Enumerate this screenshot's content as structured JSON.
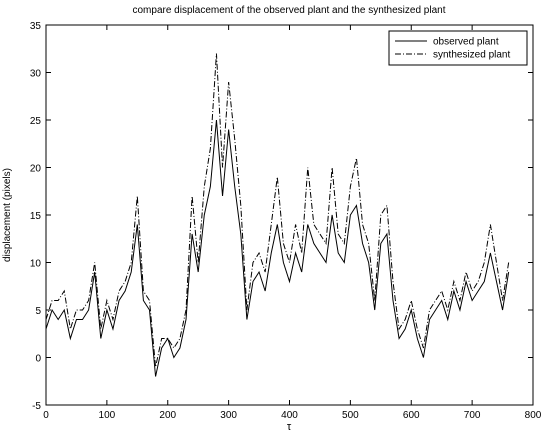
{
  "chart_data": {
    "type": "line",
    "title": "compare displacement of the observed plant and the synthesized plant",
    "x_label": "τ",
    "y_label": "displacement (pixels)",
    "x": [
      0,
      10,
      20,
      30,
      40,
      50,
      60,
      70,
      80,
      90,
      100,
      110,
      120,
      130,
      140,
      150,
      160,
      170,
      180,
      190,
      200,
      210,
      220,
      230,
      240,
      250,
      260,
      270,
      280,
      290,
      300,
      310,
      320,
      330,
      340,
      350,
      360,
      370,
      380,
      390,
      400,
      410,
      420,
      430,
      440,
      450,
      460,
      470,
      480,
      490,
      500,
      510,
      520,
      530,
      540,
      550,
      560,
      570,
      580,
      590,
      600,
      610,
      620,
      630,
      640,
      650,
      660,
      670,
      680,
      690,
      700,
      710,
      720,
      730,
      740,
      750,
      760
    ],
    "series": [
      {
        "name": "observed plant",
        "color": "#000000",
        "linestyle": "solid",
        "values": [
          3,
          5,
          4,
          5,
          2,
          4,
          4,
          5,
          9,
          2,
          5,
          3,
          6,
          7,
          9,
          14,
          6,
          5,
          -2,
          1,
          2,
          0,
          1,
          4,
          13,
          9,
          15,
          18,
          25,
          17,
          24,
          18,
          13,
          4,
          8,
          9,
          7,
          11,
          14,
          10,
          8,
          11,
          9,
          14,
          12,
          11,
          10,
          15,
          11,
          10,
          15,
          16,
          12,
          10,
          5,
          12,
          13,
          6,
          2,
          3,
          5,
          2,
          0,
          4,
          5,
          6,
          4,
          7,
          5,
          8,
          6,
          7,
          8,
          11,
          8,
          5,
          9
        ]
      },
      {
        "name": "synthesized plant",
        "color": "#000000",
        "linestyle": "dashdot",
        "values": [
          4,
          6,
          6,
          7,
          3,
          5,
          5,
          6,
          10,
          3,
          6,
          4,
          7,
          8,
          10,
          17,
          7,
          6,
          -1,
          2,
          2,
          1,
          2,
          5,
          17,
          10,
          18,
          22,
          32,
          20,
          29,
          23,
          16,
          5,
          10,
          11,
          9,
          14,
          19,
          12,
          10,
          14,
          11,
          20,
          14,
          13,
          12,
          20,
          13,
          12,
          18,
          21,
          14,
          12,
          6,
          15,
          16,
          8,
          3,
          4,
          6,
          3,
          1,
          5,
          6,
          7,
          5,
          8,
          6,
          9,
          7,
          8,
          10,
          14,
          10,
          6,
          10
        ]
      }
    ],
    "xlim": [
      0,
      800
    ],
    "xticks": [
      0,
      100,
      200,
      300,
      400,
      500,
      600,
      700,
      800
    ],
    "ylim": [
      -5,
      35
    ],
    "yticks": [
      -5,
      0,
      5,
      10,
      15,
      20,
      25,
      30,
      35
    ],
    "grid": false,
    "legend": "upper right"
  }
}
